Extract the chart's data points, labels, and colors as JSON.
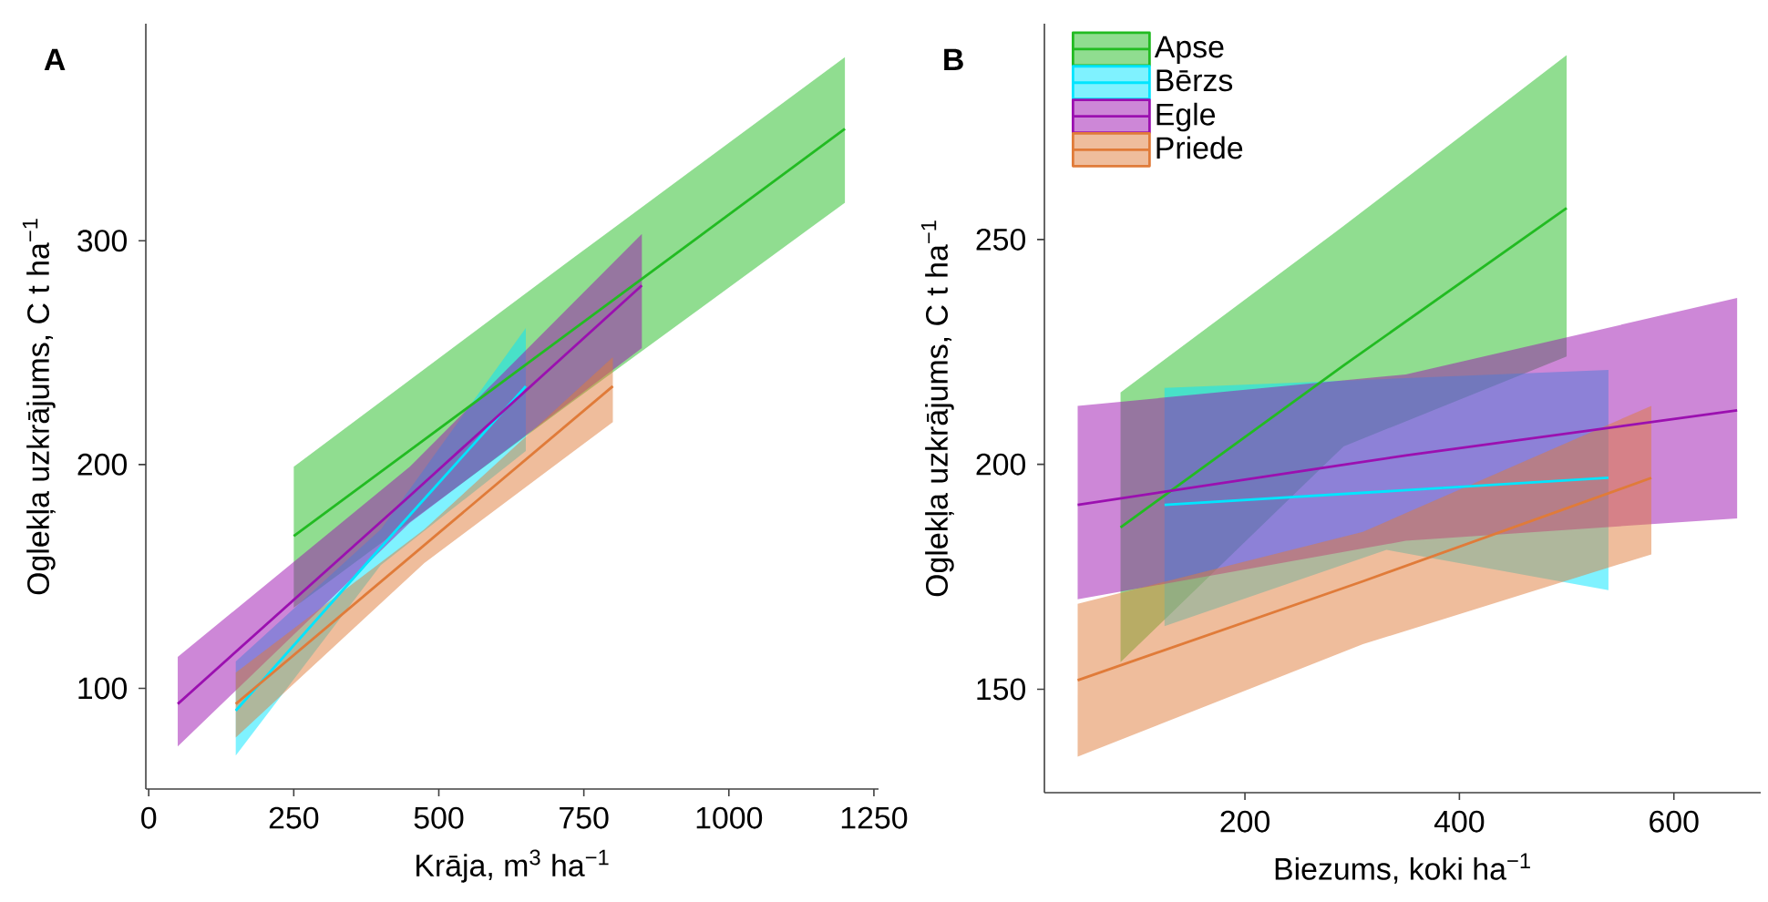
{
  "chart_data": [
    {
      "type": "line",
      "title": "A",
      "xlabel": "Krāja, m$^{3}$ ha$^{−1}$",
      "ylabel": "Oglekļa uzkrājums, C t ha$^{−1}$",
      "xlim": [
        -5,
        1258
      ],
      "ylim": [
        55,
        397
      ],
      "xticks": [
        0,
        250,
        500,
        750,
        1000,
        1250
      ],
      "yticks": [
        100,
        200,
        300
      ],
      "series": [
        {
          "color": "#22bb22",
          "x": [
            250,
            725,
            1200
          ],
          "values": [
            168,
            259,
            350
          ],
          "lower": [
            136,
            227,
            317
          ],
          "upper": [
            199,
            291,
            382
          ]
        },
        {
          "color": "#00e5ff",
          "x": [
            150,
            400,
            650
          ],
          "values": [
            90,
            163,
            235
          ],
          "lower": [
            70,
            155,
            206
          ],
          "upper": [
            112,
            171,
            261
          ]
        },
        {
          "color": "#9b10b0",
          "x": [
            50,
            450,
            850
          ],
          "values": [
            93,
            186,
            280
          ],
          "lower": [
            74,
            174,
            252
          ],
          "upper": [
            114,
            199,
            303
          ]
        },
        {
          "color": "#e07b39",
          "x": [
            150,
            475,
            800
          ],
          "values": [
            93,
            164,
            235
          ],
          "lower": [
            78,
            156,
            219
          ],
          "upper": [
            107,
            171,
            248
          ]
        }
      ]
    },
    {
      "type": "line",
      "title": "B",
      "xlabel": "Biezums, koki ha$^{−1}$",
      "ylabel": "Oglekļa uzkrājums, C t ha$^{−1}$",
      "xlim": [
        13,
        681
      ],
      "ylim": [
        127,
        298
      ],
      "xticks": [
        200,
        400,
        600
      ],
      "yticks": [
        150,
        200,
        250
      ],
      "legend": "top left",
      "series": [
        {
          "name": "Apse",
          "color": "#22bb22",
          "x": [
            84,
            292,
            500
          ],
          "values": [
            186,
            222,
            257
          ],
          "lower": [
            156,
            204,
            224
          ],
          "upper": [
            216,
            253,
            291
          ]
        },
        {
          "name": "Bērzs",
          "color": "#00e5ff",
          "x": [
            125,
            332,
            539
          ],
          "values": [
            191,
            194,
            197
          ],
          "lower": [
            164,
            181,
            172
          ],
          "upper": [
            217,
            219,
            221
          ]
        },
        {
          "name": "Egle",
          "color": "#9b10b0",
          "x": [
            44,
            350,
            659
          ],
          "values": [
            191,
            202,
            212
          ],
          "lower": [
            170,
            183,
            188
          ],
          "upper": [
            213,
            220,
            237
          ]
        },
        {
          "name": "Priede",
          "color": "#e07b39",
          "x": [
            44,
            310,
            579
          ],
          "values": [
            152,
            174,
            197
          ],
          "lower": [
            135,
            160,
            180
          ],
          "upper": [
            169,
            185,
            213
          ]
        }
      ]
    }
  ]
}
